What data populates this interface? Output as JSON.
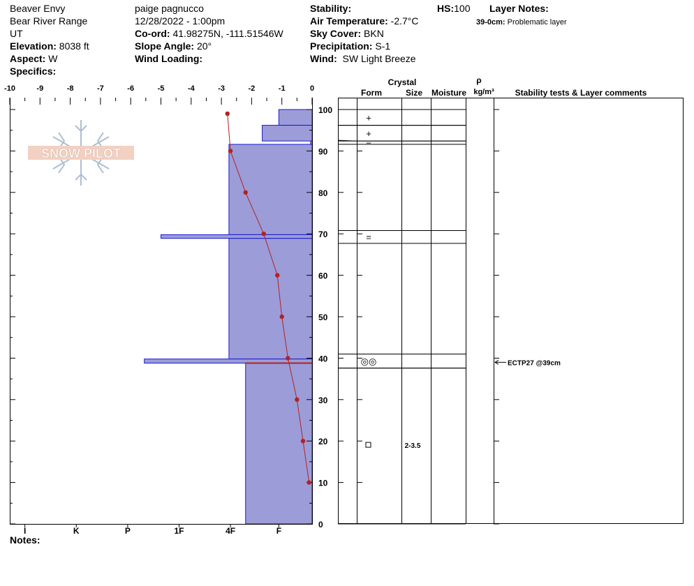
{
  "header": {
    "location": "Beaver Envy",
    "range": "Bear River Range",
    "state": "UT",
    "elevation_label": "Elevation:",
    "elevation_value": "8038 ft",
    "aspect_label": "Aspect:",
    "aspect_value": "W",
    "specifics_label": "Specifics:",
    "observer": "paige pagnucco",
    "datetime": "12/28/2022 - 1:00pm",
    "coord_label": "Co-ord:",
    "coord_value": "41.98275N, -111.51546W",
    "slope_label": "Slope Angle:",
    "slope_value": "20°",
    "wind_loading_label": "Wind Loading:",
    "wind_loading_value": "",
    "stability_label": "Stability:",
    "stability_value": "",
    "air_temp_label": "Air Temperature:",
    "air_temp_value": "-2.7°C",
    "sky_label": "Sky Cover:",
    "sky_value": "BKN",
    "precip_label": "Precipitation:",
    "precip_value": "S-1",
    "wind_label": "Wind:",
    "wind_value": "SW Light Breeze",
    "hs_label": "HS:",
    "hs_value": "100",
    "layer_notes_label": "Layer Notes:",
    "layer_note_depth": "39-0cm:",
    "layer_note_text": "Problematic layer"
  },
  "footer": {
    "notes_label": "Notes:"
  },
  "logo": {
    "text": "SNOW PILOT"
  },
  "table_headers": {
    "crystal": "Crystal",
    "form": "Form",
    "size": "Size",
    "moisture": "Moisture",
    "rho": "ρ",
    "density_unit": "kg/m³",
    "stability": "Stability tests & Layer comments"
  },
  "colors": {
    "hardness_fill": "#9c9cd9",
    "hardness_stroke": "#1a1acc",
    "temp_line": "#b22222"
  },
  "chart_data": {
    "type": "snow_profile",
    "temp_axis": {
      "min": -10,
      "max": 0,
      "ticks": [
        "-10",
        "-9",
        "-8",
        "-7",
        "-6",
        "-5",
        "-4",
        "-3",
        "-2",
        "-1",
        "0"
      ]
    },
    "hardness_axis": {
      "ticks": [
        "I",
        "K",
        "P",
        "1F",
        "4F",
        "F"
      ],
      "positions": [
        -9.5,
        -7.8,
        -6.1,
        -4.4,
        -2.7,
        -1.1
      ]
    },
    "depth_axis": {
      "min": 0,
      "max": 100,
      "ticks": [
        "0",
        "10",
        "20",
        "30",
        "40",
        "50",
        "60",
        "70",
        "80",
        "90",
        "100"
      ]
    },
    "hardness_layers": [
      {
        "top": 100,
        "bottom": 96.2,
        "hardness": -1.1
      },
      {
        "top": 96.2,
        "bottom": 92.4,
        "hardness": -1.65
      },
      {
        "top": 92.4,
        "bottom": 91.6,
        "hardness": -0.05
      },
      {
        "top": 91.6,
        "bottom": 69.8,
        "hardness": -2.75
      },
      {
        "top": 69.8,
        "bottom": 68.9,
        "hardness": -5.0
      },
      {
        "top": 68.9,
        "bottom": 39.8,
        "hardness": -2.75
      },
      {
        "top": 39.8,
        "bottom": 38.8,
        "hardness": -5.55
      },
      {
        "top": 38.8,
        "bottom": 0,
        "hardness": -2.2
      }
    ],
    "temperature_profile": [
      {
        "depth": 99,
        "temp": -2.8
      },
      {
        "depth": 90,
        "temp": -2.7
      },
      {
        "depth": 80,
        "temp": -2.2
      },
      {
        "depth": 70,
        "temp": -1.6
      },
      {
        "depth": 60,
        "temp": -1.15
      },
      {
        "depth": 50,
        "temp": -1.0
      },
      {
        "depth": 40,
        "temp": -0.8
      },
      {
        "depth": 30,
        "temp": -0.5
      },
      {
        "depth": 20,
        "temp": -0.3
      },
      {
        "depth": 10,
        "temp": -0.1
      }
    ],
    "weak_layer_depth": 38.8,
    "layer_table": [
      {
        "top": 100,
        "bottom": 96.2,
        "form": "+",
        "size": ""
      },
      {
        "top": 96.2,
        "bottom": 92.4,
        "form": "+",
        "size": ""
      },
      {
        "top": 92.4,
        "bottom": 91.6,
        "form": "−",
        "size": ""
      },
      {
        "top": 70.8,
        "bottom": 67.7,
        "form": "=",
        "size": ""
      },
      {
        "top": 41.0,
        "bottom": 37.6,
        "form": "◎◎",
        "size": ""
      },
      {
        "top": 37.6,
        "bottom": 0,
        "form": "□",
        "size": "2-3.5"
      }
    ],
    "stability_tests": [
      {
        "depth": 39,
        "text": "ECTP27 @39cm"
      }
    ]
  }
}
